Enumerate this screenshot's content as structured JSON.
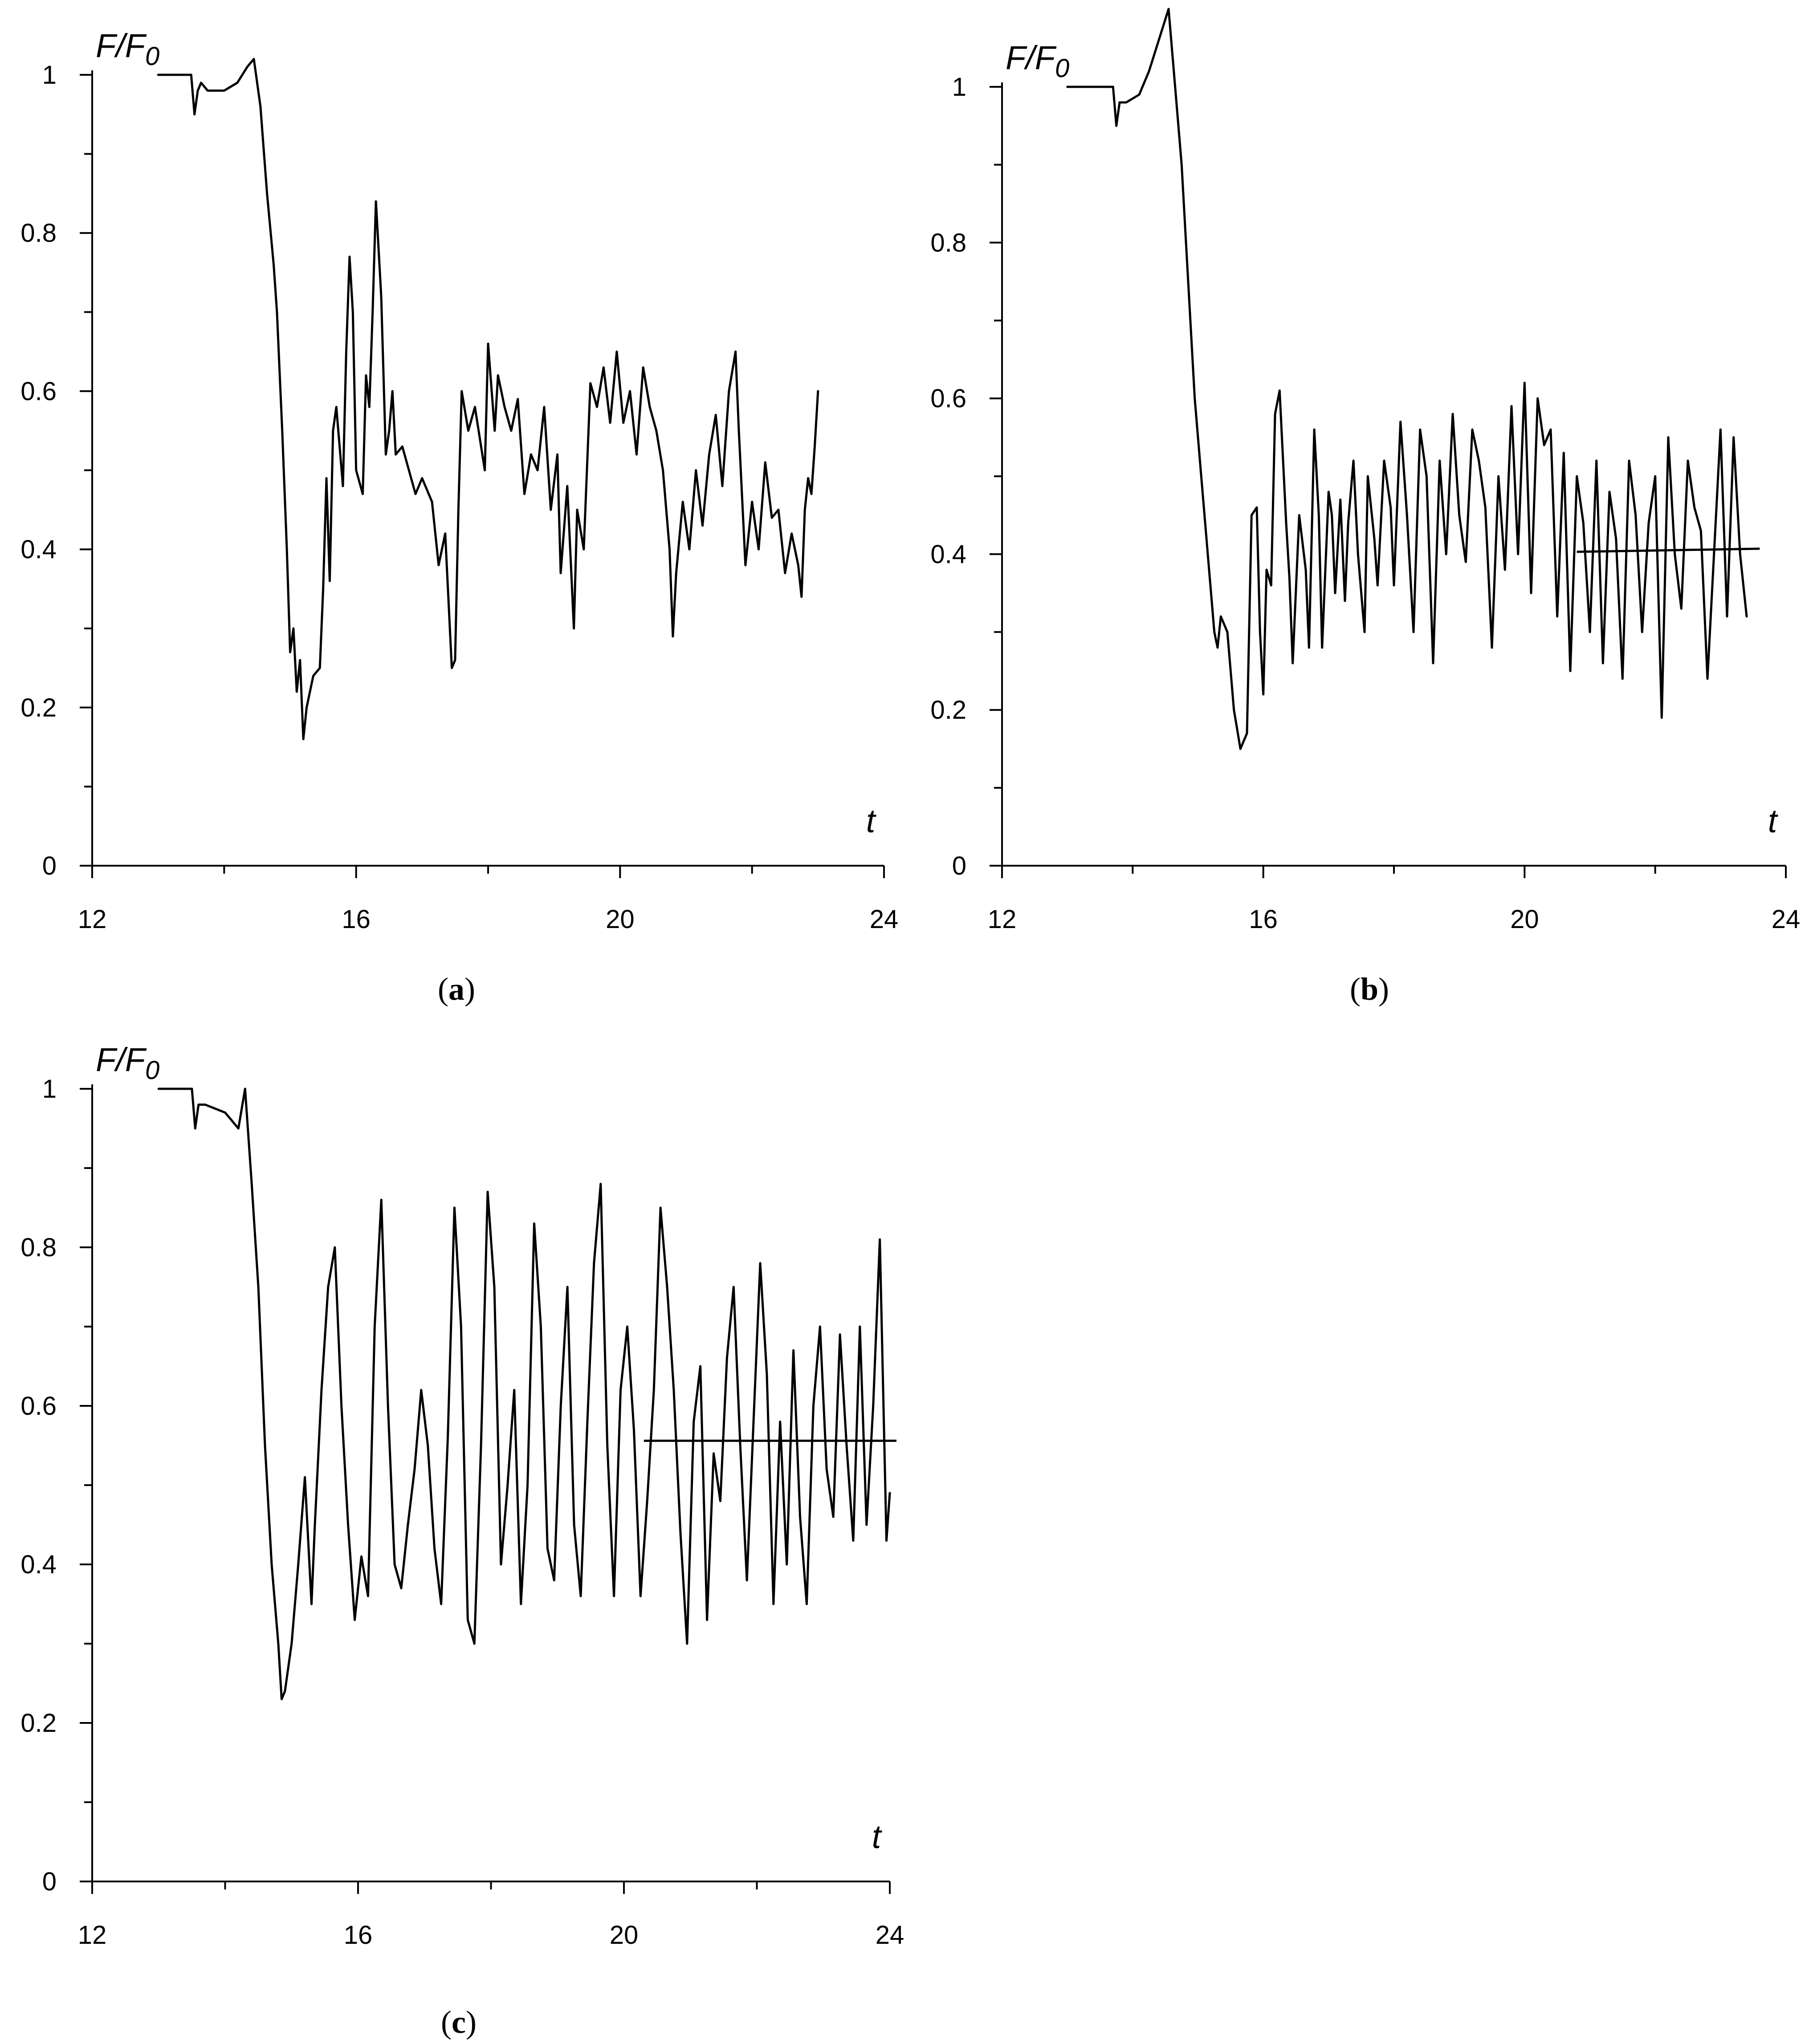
{
  "chart_data": [
    {
      "type": "line",
      "panel": "(a)",
      "panel_letter": "a",
      "ylabel": "F/F",
      "ylabel_sub": "0",
      "xlabel": "t",
      "xlim": [
        12,
        24
      ],
      "ylim": [
        0,
        1
      ],
      "xticks": [
        12,
        16,
        20,
        24
      ],
      "yticks": [
        0,
        0.2,
        0.4,
        0.6,
        0.8,
        1
      ],
      "ytick_labels": [
        "0",
        "0.2",
        "0.4",
        "0.6",
        "0.8",
        "1"
      ],
      "series": [
        {
          "x": [
            13.0,
            13.5,
            13.55,
            13.6,
            13.65,
            13.75,
            14.0,
            14.2,
            14.35,
            14.45,
            14.55,
            14.65,
            14.75,
            14.8,
            14.88,
            14.95,
            15.0,
            15.05,
            15.1,
            15.15,
            15.2,
            15.25,
            15.35,
            15.45,
            15.5,
            15.55,
            15.6,
            15.65,
            15.7,
            15.8,
            15.85,
            15.9,
            15.95,
            16.0,
            16.1,
            16.15,
            16.2,
            16.25,
            16.3,
            16.38,
            16.45,
            16.5,
            16.55,
            16.6,
            16.7,
            16.8,
            16.9,
            17.0,
            17.05,
            17.15,
            17.25,
            17.35,
            17.45,
            17.5,
            17.55,
            17.6,
            17.7,
            17.8,
            17.95,
            18.0,
            18.1,
            18.15,
            18.25,
            18.35,
            18.45,
            18.55,
            18.65,
            18.75,
            18.85,
            18.95,
            19.05,
            19.1,
            19.2,
            19.3,
            19.35,
            19.45,
            19.55,
            19.65,
            19.75,
            19.85,
            19.95,
            20.05,
            20.15,
            20.25,
            20.35,
            20.45,
            20.55,
            20.65,
            20.75,
            20.8,
            20.85,
            20.95,
            21.05,
            21.15,
            21.25,
            21.35,
            21.45,
            21.55,
            21.65,
            21.75,
            21.8,
            21.9,
            22.0,
            22.1,
            22.2,
            22.3,
            22.4,
            22.5,
            22.6,
            22.7,
            22.75,
            22.8,
            22.85,
            22.9,
            22.95,
            23.0
          ],
          "y": [
            1.0,
            1.0,
            0.95,
            0.98,
            0.99,
            0.98,
            0.98,
            0.99,
            1.01,
            1.02,
            0.96,
            0.85,
            0.76,
            0.7,
            0.55,
            0.4,
            0.27,
            0.3,
            0.22,
            0.26,
            0.16,
            0.2,
            0.24,
            0.25,
            0.35,
            0.49,
            0.36,
            0.55,
            0.58,
            0.48,
            0.65,
            0.77,
            0.7,
            0.5,
            0.47,
            0.62,
            0.58,
            0.7,
            0.84,
            0.72,
            0.52,
            0.55,
            0.6,
            0.52,
            0.53,
            0.5,
            0.47,
            0.49,
            0.48,
            0.46,
            0.38,
            0.42,
            0.25,
            0.26,
            0.45,
            0.6,
            0.55,
            0.58,
            0.5,
            0.66,
            0.55,
            0.62,
            0.58,
            0.55,
            0.59,
            0.47,
            0.52,
            0.5,
            0.58,
            0.45,
            0.52,
            0.37,
            0.48,
            0.3,
            0.45,
            0.4,
            0.61,
            0.58,
            0.63,
            0.56,
            0.65,
            0.56,
            0.6,
            0.52,
            0.63,
            0.58,
            0.55,
            0.5,
            0.4,
            0.29,
            0.37,
            0.46,
            0.4,
            0.5,
            0.43,
            0.52,
            0.57,
            0.48,
            0.6,
            0.65,
            0.55,
            0.38,
            0.46,
            0.4,
            0.51,
            0.44,
            0.45,
            0.37,
            0.42,
            0.38,
            0.34,
            0.45,
            0.49,
            0.47,
            0.53,
            0.6
          ]
        }
      ]
    },
    {
      "type": "line",
      "panel": "(b)",
      "panel_letter": "b",
      "ylabel": "F/F",
      "ylabel_sub": "0",
      "xlabel": "t",
      "xlim": [
        12,
        24
      ],
      "ylim": [
        0,
        1
      ],
      "xticks": [
        12,
        16,
        20,
        24
      ],
      "yticks": [
        0,
        0.2,
        0.4,
        0.6,
        0.8,
        1
      ],
      "ytick_labels": [
        "0",
        "0.2",
        "0.4",
        "0.6",
        "0.8",
        "1"
      ],
      "mean_line": {
        "x": [
          20.8,
          23.6
        ],
        "y": [
          0.403,
          0.407
        ]
      },
      "series": [
        {
          "x": [
            13.0,
            13.7,
            13.75,
            13.8,
            13.9,
            14.1,
            14.25,
            14.4,
            14.55,
            14.65,
            14.75,
            14.85,
            14.95,
            15.05,
            15.15,
            15.25,
            15.3,
            15.35,
            15.45,
            15.55,
            15.65,
            15.75,
            15.82,
            15.9,
            15.95,
            16.0,
            16.05,
            16.12,
            16.18,
            16.25,
            16.35,
            16.4,
            16.45,
            16.55,
            16.65,
            16.7,
            16.78,
            16.85,
            16.9,
            17.0,
            17.05,
            17.1,
            17.18,
            17.25,
            17.3,
            17.38,
            17.45,
            17.55,
            17.6,
            17.7,
            17.75,
            17.85,
            17.95,
            18.0,
            18.1,
            18.2,
            18.3,
            18.4,
            18.5,
            18.6,
            18.7,
            18.8,
            18.9,
            19.0,
            19.1,
            19.2,
            19.3,
            19.4,
            19.5,
            19.6,
            19.7,
            19.8,
            19.9,
            20.0,
            20.1,
            20.2,
            20.3,
            20.4,
            20.5,
            20.6,
            20.7,
            20.8,
            20.9,
            21.0,
            21.1,
            21.2,
            21.3,
            21.4,
            21.5,
            21.6,
            21.7,
            21.8,
            21.9,
            22.0,
            22.1,
            22.2,
            22.3,
            22.4,
            22.5,
            22.6,
            22.7,
            22.8,
            22.9,
            23.0,
            23.1,
            23.2,
            23.3,
            23.4
          ],
          "y": [
            1.0,
            1.0,
            0.95,
            0.98,
            0.98,
            0.99,
            1.02,
            1.06,
            1.1,
            1.0,
            0.9,
            0.75,
            0.6,
            0.5,
            0.4,
            0.3,
            0.28,
            0.32,
            0.3,
            0.2,
            0.15,
            0.17,
            0.45,
            0.46,
            0.3,
            0.22,
            0.38,
            0.36,
            0.58,
            0.61,
            0.44,
            0.37,
            0.26,
            0.45,
            0.38,
            0.28,
            0.56,
            0.45,
            0.28,
            0.48,
            0.45,
            0.35,
            0.47,
            0.34,
            0.44,
            0.52,
            0.4,
            0.3,
            0.5,
            0.42,
            0.36,
            0.52,
            0.46,
            0.36,
            0.57,
            0.45,
            0.3,
            0.56,
            0.5,
            0.26,
            0.52,
            0.4,
            0.58,
            0.45,
            0.39,
            0.56,
            0.52,
            0.46,
            0.28,
            0.5,
            0.38,
            0.59,
            0.4,
            0.62,
            0.35,
            0.6,
            0.54,
            0.56,
            0.32,
            0.53,
            0.25,
            0.5,
            0.44,
            0.3,
            0.52,
            0.26,
            0.48,
            0.42,
            0.24,
            0.52,
            0.45,
            0.3,
            0.44,
            0.5,
            0.19,
            0.55,
            0.4,
            0.33,
            0.52,
            0.46,
            0.43,
            0.24,
            0.4,
            0.56,
            0.32,
            0.55,
            0.4,
            0.32
          ]
        }
      ]
    },
    {
      "type": "line",
      "panel": "(c)",
      "panel_letter": "c",
      "ylabel": "F/F",
      "ylabel_sub": "0",
      "xlabel": "t",
      "xlim": [
        12,
        24
      ],
      "ylim": [
        0,
        1
      ],
      "xticks": [
        12,
        16,
        20,
        24
      ],
      "yticks": [
        0,
        0.2,
        0.4,
        0.6,
        0.8,
        1
      ],
      "ytick_labels": [
        "0",
        "0.2",
        "0.4",
        "0.6",
        "0.8",
        "1"
      ],
      "mean_line": {
        "x": [
          20.3,
          24.1
        ],
        "y": [
          0.556,
          0.556
        ]
      },
      "series": [
        {
          "x": [
            13.0,
            13.5,
            13.55,
            13.6,
            13.7,
            14.0,
            14.2,
            14.3,
            14.4,
            14.5,
            14.6,
            14.7,
            14.8,
            14.85,
            14.9,
            15.0,
            15.1,
            15.2,
            15.3,
            15.35,
            15.45,
            15.55,
            15.65,
            15.75,
            15.85,
            15.95,
            16.05,
            16.15,
            16.25,
            16.35,
            16.45,
            16.55,
            16.65,
            16.75,
            16.85,
            16.95,
            17.05,
            17.15,
            17.25,
            17.35,
            17.45,
            17.55,
            17.65,
            17.75,
            17.85,
            17.95,
            18.05,
            18.15,
            18.25,
            18.35,
            18.45,
            18.55,
            18.65,
            18.75,
            18.85,
            18.95,
            19.05,
            19.15,
            19.25,
            19.35,
            19.45,
            19.55,
            19.65,
            19.75,
            19.85,
            19.95,
            20.05,
            20.15,
            20.25,
            20.35,
            20.45,
            20.55,
            20.65,
            20.75,
            20.85,
            20.95,
            21.05,
            21.15,
            21.25,
            21.35,
            21.45,
            21.55,
            21.65,
            21.75,
            21.85,
            21.95,
            22.05,
            22.15,
            22.25,
            22.35,
            22.45,
            22.55,
            22.65,
            22.75,
            22.85,
            22.95,
            23.05,
            23.15,
            23.25,
            23.35,
            23.45,
            23.55,
            23.65,
            23.75,
            23.85,
            23.95,
            24.0
          ],
          "y": [
            1.0,
            1.0,
            0.95,
            0.98,
            0.98,
            0.97,
            0.95,
            1.0,
            0.88,
            0.75,
            0.55,
            0.4,
            0.3,
            0.23,
            0.24,
            0.3,
            0.4,
            0.51,
            0.35,
            0.45,
            0.62,
            0.75,
            0.8,
            0.6,
            0.45,
            0.33,
            0.41,
            0.36,
            0.7,
            0.86,
            0.6,
            0.4,
            0.37,
            0.45,
            0.52,
            0.62,
            0.55,
            0.42,
            0.35,
            0.56,
            0.85,
            0.7,
            0.33,
            0.3,
            0.55,
            0.87,
            0.75,
            0.4,
            0.5,
            0.62,
            0.35,
            0.5,
            0.83,
            0.7,
            0.42,
            0.38,
            0.6,
            0.75,
            0.45,
            0.36,
            0.58,
            0.78,
            0.88,
            0.55,
            0.36,
            0.62,
            0.7,
            0.57,
            0.36,
            0.48,
            0.62,
            0.85,
            0.75,
            0.62,
            0.44,
            0.3,
            0.58,
            0.65,
            0.33,
            0.54,
            0.48,
            0.66,
            0.75,
            0.55,
            0.38,
            0.58,
            0.78,
            0.64,
            0.35,
            0.58,
            0.4,
            0.67,
            0.46,
            0.35,
            0.6,
            0.7,
            0.52,
            0.46,
            0.69,
            0.55,
            0.43,
            0.7,
            0.45,
            0.6,
            0.81,
            0.43,
            0.49
          ]
        }
      ]
    }
  ]
}
